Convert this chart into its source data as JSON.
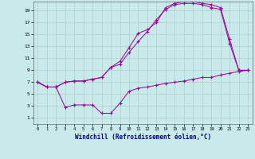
{
  "xlabel": "Windchill (Refroidissement éolien,°C)",
  "bg_color": "#c8eaea",
  "line_color": "#990099",
  "grid_color": "#b0cccc",
  "xlim": [
    -0.5,
    23.5
  ],
  "ylim": [
    0,
    20.5
  ],
  "xticks": [
    0,
    1,
    2,
    3,
    4,
    5,
    6,
    7,
    8,
    9,
    10,
    11,
    12,
    13,
    14,
    15,
    16,
    17,
    18,
    19,
    20,
    21,
    22,
    23
  ],
  "yticks": [
    1,
    3,
    5,
    7,
    9,
    11,
    13,
    15,
    17,
    19
  ],
  "series1_x": [
    0,
    1,
    2,
    3,
    4,
    5,
    6,
    7,
    8,
    9,
    10,
    11,
    12,
    13,
    14,
    15,
    16,
    17,
    18,
    19,
    20,
    21,
    22,
    23
  ],
  "series1_y": [
    7.0,
    6.2,
    6.2,
    7.0,
    7.2,
    7.2,
    7.5,
    7.8,
    9.5,
    10.0,
    12.0,
    13.8,
    15.5,
    17.5,
    19.2,
    20.0,
    20.2,
    20.2,
    20.0,
    19.5,
    19.2,
    13.5,
    9.0,
    9.0
  ],
  "series2_x": [
    0,
    1,
    2,
    3,
    4,
    5,
    6,
    7,
    8,
    9,
    10,
    11,
    12,
    13,
    14,
    15,
    16,
    17,
    18,
    19,
    20,
    21,
    22,
    23
  ],
  "series2_y": [
    7.0,
    6.2,
    6.2,
    7.0,
    7.2,
    7.2,
    7.5,
    7.8,
    9.5,
    10.5,
    12.8,
    15.2,
    15.8,
    17.0,
    19.5,
    20.2,
    20.5,
    20.5,
    20.2,
    20.0,
    19.5,
    14.2,
    9.0,
    9.0
  ],
  "series3_x": [
    0,
    1,
    2,
    3,
    4,
    5,
    6,
    7,
    8,
    9,
    10,
    11,
    12,
    13,
    14,
    15,
    16,
    17,
    18,
    19,
    20,
    21,
    22,
    23
  ],
  "series3_y": [
    7.0,
    6.2,
    6.2,
    2.8,
    3.2,
    3.2,
    3.2,
    1.8,
    1.8,
    3.5,
    5.5,
    6.0,
    6.2,
    6.5,
    6.8,
    7.0,
    7.2,
    7.5,
    7.8,
    7.8,
    8.2,
    8.5,
    8.8,
    9.0
  ]
}
